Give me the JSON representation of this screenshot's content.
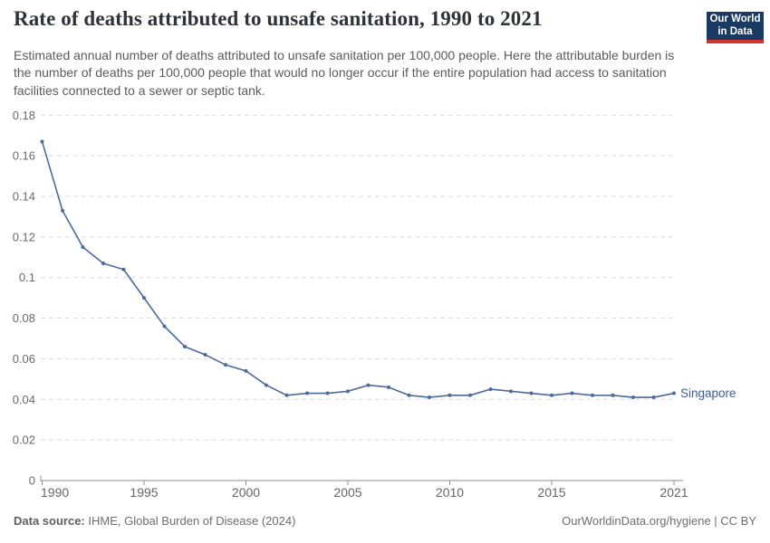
{
  "header": {
    "title": "Rate of deaths attributed to unsafe sanitation, 1990 to 2021",
    "subtitle": "Estimated annual number of deaths attributed to unsafe sanitation per 100,000 people. Here the attributable burden is the number of deaths per 100,000 people that would no longer occur if the entire population had access to sanitation facilities connected to a sewer or septic tank.",
    "logo": {
      "line1": "Our World",
      "line2": "in Data",
      "bg_color": "#1a3a63",
      "stripe_color": "#d0342c"
    }
  },
  "chart_data": {
    "type": "line",
    "title": "Rate of deaths attributed to unsafe sanitation, 1990 to 2021",
    "xlabel": "",
    "ylabel": "",
    "x": [
      1990,
      1991,
      1992,
      1993,
      1994,
      1995,
      1996,
      1997,
      1998,
      1999,
      2000,
      2001,
      2002,
      2003,
      2004,
      2005,
      2006,
      2007,
      2008,
      2009,
      2010,
      2011,
      2012,
      2013,
      2014,
      2015,
      2016,
      2017,
      2018,
      2019,
      2020,
      2021
    ],
    "series": [
      {
        "name": "Singapore",
        "values": [
          0.167,
          0.133,
          0.115,
          0.107,
          0.104,
          0.09,
          0.076,
          0.066,
          0.062,
          0.057,
          0.054,
          0.047,
          0.042,
          0.043,
          0.043,
          0.044,
          0.047,
          0.046,
          0.042,
          0.041,
          0.042,
          0.042,
          0.045,
          0.044,
          0.043,
          0.042,
          0.043,
          0.042,
          0.042,
          0.041,
          0.041,
          0.043
        ]
      }
    ],
    "xlim": [
      1990,
      2021
    ],
    "ylim": [
      0,
      0.18
    ],
    "yticks": {
      "values": [
        0,
        0.02,
        0.04,
        0.06,
        0.08,
        0.1,
        0.12,
        0.14,
        0.16,
        0.18
      ],
      "labels": [
        "0",
        "0.02",
        "0.04",
        "0.06",
        "0.08",
        "0.1",
        "0.12",
        "0.14",
        "0.16",
        "0.18"
      ]
    },
    "xticks": {
      "values": [
        1990,
        1995,
        2000,
        2005,
        2010,
        2015,
        2021
      ],
      "labels": [
        "1990",
        "1995",
        "2000",
        "2005",
        "2010",
        "2015",
        "2021"
      ]
    },
    "grid": true,
    "legend_position": "end-of-line label",
    "entity_label": "Singapore",
    "line_color": "#4c6a9c",
    "marker_color": "#4c6a9c",
    "entity_label_color": "#3d5c8f",
    "grid_color": "#dadada",
    "axis_color": "#8c8c8c",
    "tick_label_color": "#6b6b6b"
  },
  "footer": {
    "datasource_label": "Data source:",
    "datasource_value": " IHME, Global Burden of Disease (2024)",
    "credit": "OurWorldinData.org/hygiene | CC BY"
  }
}
